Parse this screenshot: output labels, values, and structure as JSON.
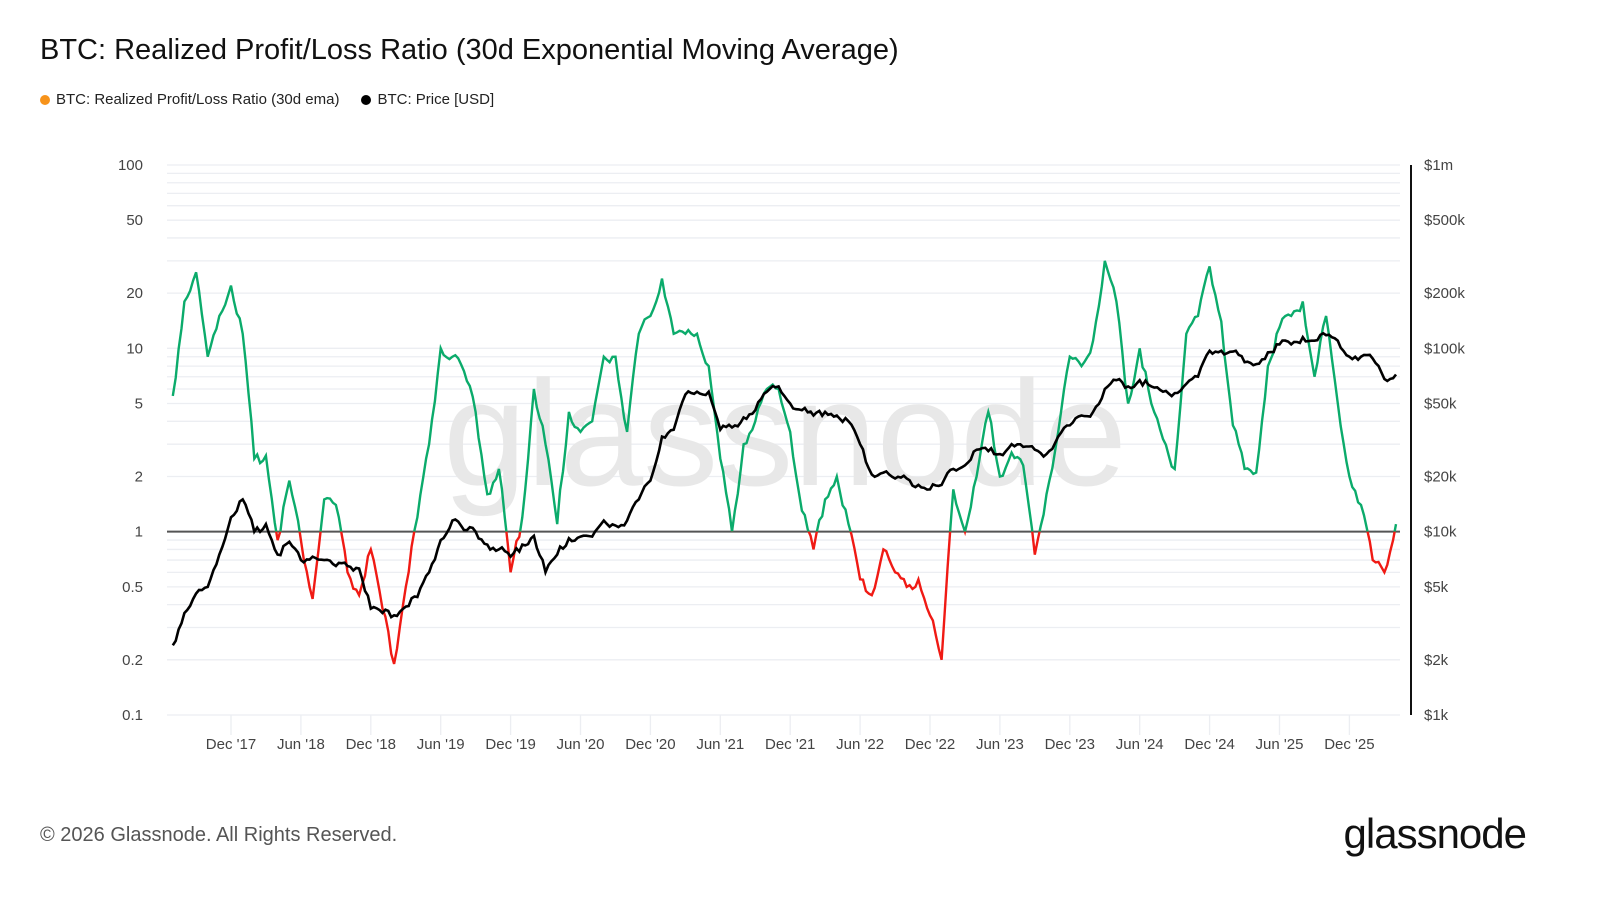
{
  "title": "BTC: Realized Profit/Loss Ratio (30d Exponential Moving Average)",
  "legend": [
    {
      "label": "BTC: Realized Profit/Loss Ratio (30d ema)",
      "color": "#f7931a"
    },
    {
      "label": "BTC: Price [USD]",
      "color": "#000000"
    }
  ],
  "footer": "© 2026 Glassnode. All Rights Reserved.",
  "logo": "glassnode",
  "watermark": "glassnode",
  "chart_data": {
    "type": "line",
    "title": "BTC: Realized Profit/Loss Ratio (30d Exponential Moving Average)",
    "left_axis": {
      "scale": "log",
      "range": [
        0.1,
        100
      ],
      "ticks": [
        100,
        50,
        20,
        10,
        5,
        2,
        1,
        0.5,
        0.2,
        0.1
      ],
      "tick_labels": [
        "100",
        "50",
        "20",
        "10",
        "5",
        "2",
        "1",
        "0.5",
        "0.2",
        "0.1"
      ]
    },
    "right_axis": {
      "scale": "log",
      "range": [
        1000,
        1000000
      ],
      "ticks": [
        1000000,
        500000,
        200000,
        100000,
        50000,
        20000,
        10000,
        5000,
        2000,
        1000
      ],
      "tick_labels": [
        "$1m",
        "$500k",
        "$200k",
        "$100k",
        "$50k",
        "$20k",
        "$10k",
        "$5k",
        "$2k",
        "$1k"
      ]
    },
    "x_axis": {
      "ticks": [
        "2017-12",
        "2018-06",
        "2018-12",
        "2019-06",
        "2019-12",
        "2020-06",
        "2020-12",
        "2021-06",
        "2021-12",
        "2022-06",
        "2022-12",
        "2023-06",
        "2023-12",
        "2024-06",
        "2024-12",
        "2025-06",
        "2025-12"
      ],
      "tick_labels": [
        "Dec '17",
        "Jun '18",
        "Dec '18",
        "Jun '19",
        "Dec '19",
        "Jun '20",
        "Dec '20",
        "Jun '21",
        "Dec '21",
        "Jun '22",
        "Dec '22",
        "Jun '23",
        "Dec '23",
        "Jun '24",
        "Dec '24",
        "Jun '25",
        "Dec '25"
      ]
    },
    "grid": true,
    "legend_position": "top-left",
    "reference_line": 1,
    "colors": {
      "ratio_above_1": "#0bab6b",
      "ratio_below_1": "#f01a14",
      "price": "#000000",
      "reference": "#555555"
    },
    "x": [
      "2017-07",
      "2017-08",
      "2017-09",
      "2017-10",
      "2017-11",
      "2017-12",
      "2018-01",
      "2018-02",
      "2018-03",
      "2018-04",
      "2018-05",
      "2018-06",
      "2018-07",
      "2018-08",
      "2018-09",
      "2018-10",
      "2018-11",
      "2018-12",
      "2019-01",
      "2019-02",
      "2019-03",
      "2019-04",
      "2019-05",
      "2019-06",
      "2019-07",
      "2019-08",
      "2019-09",
      "2019-10",
      "2019-11",
      "2019-12",
      "2020-01",
      "2020-02",
      "2020-03",
      "2020-04",
      "2020-05",
      "2020-06",
      "2020-07",
      "2020-08",
      "2020-09",
      "2020-10",
      "2020-11",
      "2020-12",
      "2021-01",
      "2021-02",
      "2021-03",
      "2021-04",
      "2021-05",
      "2021-06",
      "2021-07",
      "2021-08",
      "2021-09",
      "2021-10",
      "2021-11",
      "2021-12",
      "2022-01",
      "2022-02",
      "2022-03",
      "2022-04",
      "2022-05",
      "2022-06",
      "2022-07",
      "2022-08",
      "2022-09",
      "2022-10",
      "2022-11",
      "2022-12",
      "2023-01",
      "2023-02",
      "2023-03",
      "2023-04",
      "2023-05",
      "2023-06",
      "2023-07",
      "2023-08",
      "2023-09",
      "2023-10",
      "2023-11",
      "2023-12",
      "2024-01",
      "2024-02",
      "2024-03",
      "2024-04",
      "2024-05",
      "2024-06",
      "2024-07",
      "2024-08",
      "2024-09",
      "2024-10",
      "2024-11",
      "2024-12",
      "2025-01",
      "2025-02",
      "2025-03",
      "2025-04",
      "2025-05",
      "2025-06",
      "2025-07",
      "2025-08",
      "2025-09",
      "2025-10",
      "2025-11",
      "2025-12",
      "2026-01",
      "2026-02",
      "2026-03",
      "2026-04"
    ],
    "series": [
      {
        "name": "BTC: Realized Profit/Loss Ratio (30d ema)",
        "axis": "left",
        "values": [
          5.5,
          18,
          26,
          9,
          15,
          22,
          12,
          2.5,
          2.6,
          0.9,
          1.9,
          0.9,
          0.43,
          1.5,
          1.4,
          0.6,
          0.45,
          0.8,
          0.38,
          0.19,
          0.5,
          1.2,
          3,
          10,
          9,
          7.5,
          4.5,
          1.6,
          2.2,
          0.6,
          1.2,
          6,
          3,
          1.1,
          4.5,
          3.5,
          4,
          9,
          9,
          3.5,
          12,
          15,
          24,
          12,
          12,
          12,
          8,
          2.5,
          1.0,
          3,
          4,
          6,
          6,
          3.5,
          1.3,
          0.8,
          1.5,
          2.0,
          1.1,
          0.55,
          0.45,
          0.8,
          0.6,
          0.5,
          0.55,
          0.35,
          0.2,
          1.7,
          1.0,
          2,
          4.5,
          2,
          2.7,
          2.3,
          0.75,
          1.6,
          3.5,
          9,
          8,
          11,
          30,
          18,
          5,
          10,
          5,
          3.2,
          2.2,
          12,
          15,
          28,
          14,
          3.8,
          2.2,
          2.1,
          8,
          13,
          15,
          18,
          7,
          15,
          5,
          2,
          1.4,
          0.7,
          0.6,
          1.1
        ]
      },
      {
        "name": "BTC: Price [USD]",
        "axis": "right",
        "values": [
          2400,
          3600,
          4600,
          5000,
          7500,
          12000,
          15000,
          10000,
          11000,
          7500,
          8800,
          7000,
          7300,
          7000,
          6500,
          6500,
          6300,
          3800,
          3600,
          3500,
          3900,
          4400,
          6000,
          9000,
          11500,
          10200,
          10000,
          8500,
          8000,
          7300,
          8500,
          9500,
          6000,
          7500,
          9200,
          9400,
          9400,
          11500,
          10800,
          11500,
          15000,
          19000,
          33000,
          36000,
          56000,
          58000,
          58000,
          36000,
          37000,
          42000,
          46000,
          58000,
          62000,
          50000,
          46000,
          43000,
          45000,
          43000,
          40000,
          30000,
          20500,
          21000,
          19500,
          19500,
          18000,
          17000,
          18000,
          22000,
          23000,
          28000,
          27500,
          26500,
          30000,
          29000,
          28000,
          26500,
          33000,
          38000,
          43000,
          45000,
          60000,
          67000,
          62000,
          67000,
          62000,
          58000,
          57000,
          64000,
          70000,
          97000,
          97000,
          96000,
          84000,
          82000,
          95000,
          105000,
          105000,
          115000,
          110000,
          118000,
          110000,
          90000,
          90000,
          88000,
          68000,
          72000
        ]
      }
    ]
  }
}
